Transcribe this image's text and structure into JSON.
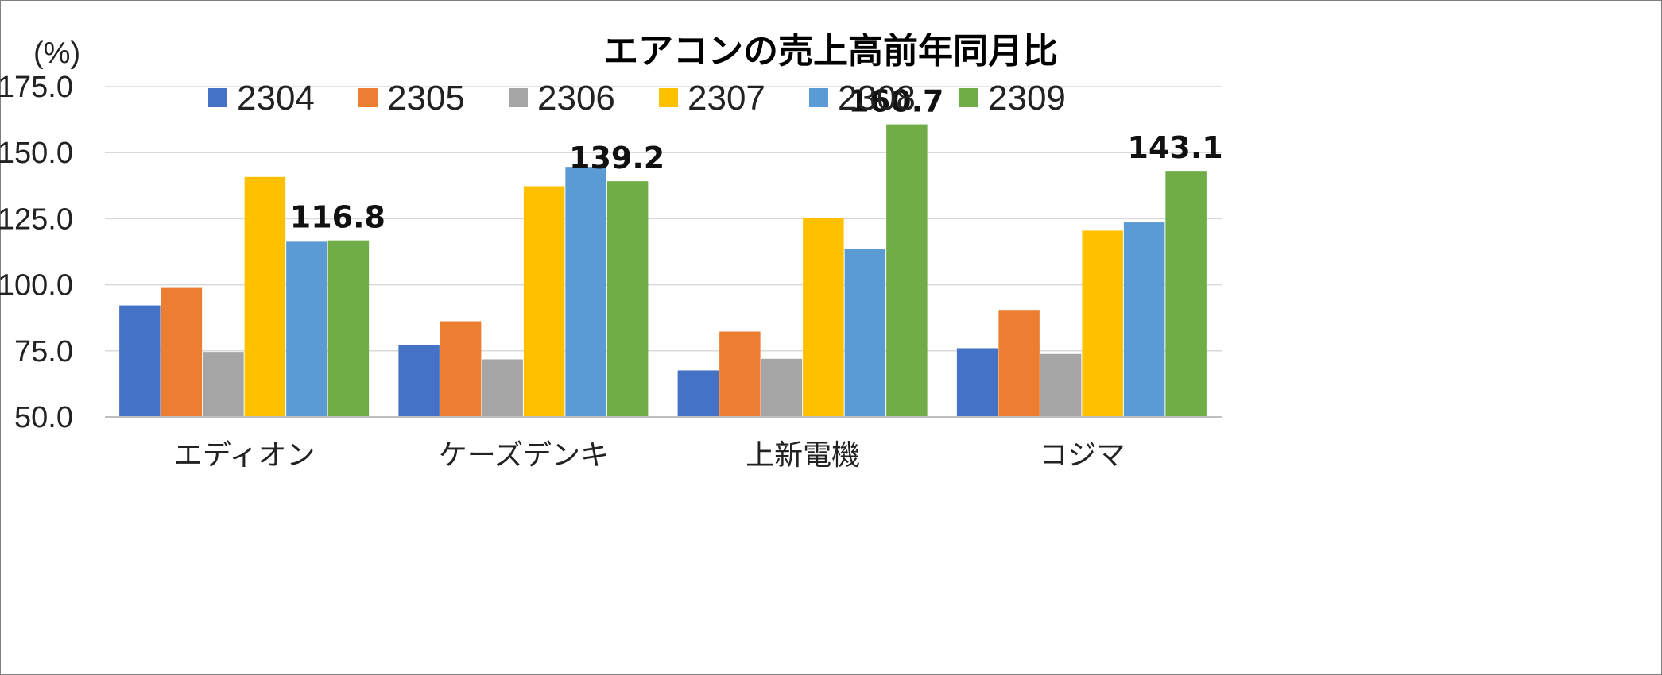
{
  "chart_data": {
    "type": "bar",
    "title": "エアコンの売上高前年同月比",
    "unit_label": "(%)",
    "xlabel": "",
    "ylabel": "(%)",
    "ylim": [
      50,
      175
    ],
    "yticks": [
      "50.0",
      "75.0",
      "100.0",
      "125.0",
      "150.0",
      "175.0"
    ],
    "ytick_values": [
      50,
      75,
      100,
      125,
      150,
      175
    ],
    "grid": true,
    "legend_position": "top",
    "categories": [
      "エディオン",
      "ケーズデンキ",
      "上新電機",
      "コジマ"
    ],
    "series": [
      {
        "name": "2304",
        "color": "#4472C4",
        "values": [
          92.2,
          77.3,
          67.6,
          76.0
        ]
      },
      {
        "name": "2305",
        "color": "#ED7D31",
        "values": [
          98.8,
          86.2,
          82.3,
          90.5
        ]
      },
      {
        "name": "2306",
        "color": "#A5A5A5",
        "values": [
          74.6,
          71.8,
          72.0,
          73.8
        ]
      },
      {
        "name": "2307",
        "color": "#FFC000",
        "values": [
          140.8,
          137.3,
          125.3,
          120.5
        ]
      },
      {
        "name": "2308",
        "color": "#5B9BD5",
        "values": [
          116.3,
          144.6,
          113.4,
          123.6
        ]
      },
      {
        "name": "2309",
        "color": "#70AD47",
        "values": [
          116.8,
          139.2,
          160.7,
          143.1
        ]
      }
    ],
    "data_labels": [
      {
        "series": "2309",
        "category": "エディオン",
        "text": "116.8"
      },
      {
        "series": "2309",
        "category": "ケーズデンキ",
        "text": "139.2"
      },
      {
        "series": "2309",
        "category": "上新電機",
        "text": "160.7"
      },
      {
        "series": "2309",
        "category": "コジマ",
        "text": "143.1"
      }
    ]
  }
}
